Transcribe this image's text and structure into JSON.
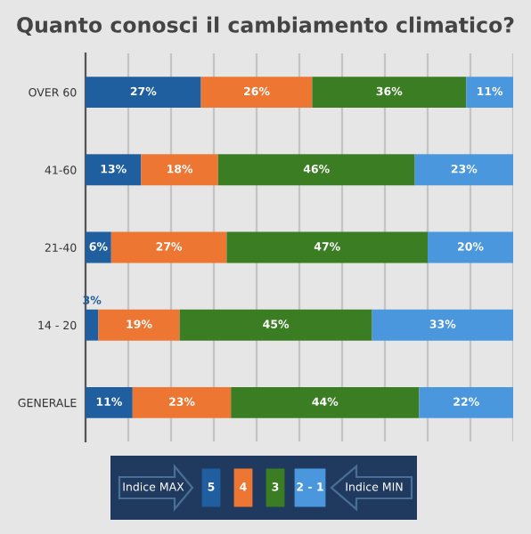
{
  "chart_data": {
    "type": "bar",
    "orientation": "horizontal",
    "stacked": true,
    "title": "Quanto conosci il cambiamento climatico?",
    "categories": [
      "OVER 60",
      "41-60",
      "21-40",
      "14 - 20",
      "GENERALE"
    ],
    "series": [
      {
        "name": "5",
        "color": "#1f5f9f",
        "values": [
          27,
          13,
          6,
          3,
          11
        ],
        "value_labels": [
          "27%",
          "13%",
          "6%",
          "3%",
          "11%"
        ]
      },
      {
        "name": "4",
        "color": "#ed7633",
        "values": [
          26,
          18,
          27,
          19,
          23
        ],
        "value_labels": [
          "26%",
          "18%",
          "27%",
          "19%",
          "23%"
        ]
      },
      {
        "name": "3",
        "color": "#3b7d23",
        "values": [
          36,
          46,
          47,
          45,
          44
        ],
        "value_labels": [
          "36%",
          "46%",
          "47%",
          "45%",
          "44%"
        ]
      },
      {
        "name": "2 - 1",
        "color": "#4a97de",
        "values": [
          11,
          23,
          20,
          33,
          22
        ],
        "value_labels": [
          "11%",
          "23%",
          "20%",
          "33%",
          "22%"
        ]
      }
    ],
    "xlim": [
      0,
      100
    ],
    "xticks": [
      {
        "value": 0,
        "label": null
      },
      {
        "value": 10,
        "label": null
      },
      {
        "value": 20,
        "label": null
      },
      {
        "value": 30,
        "label": null
      },
      {
        "value": 40,
        "label": null
      },
      {
        "value": 50,
        "label": null
      },
      {
        "value": 60,
        "label": null
      },
      {
        "value": 70,
        "label": null
      },
      {
        "value": 80,
        "label": null
      },
      {
        "value": 90,
        "label": null
      },
      {
        "value": 100,
        "label": null
      }
    ],
    "grid": "x",
    "legend": "bottom",
    "annotations": [
      "Indice MAX",
      "Indice MIN"
    ]
  }
}
